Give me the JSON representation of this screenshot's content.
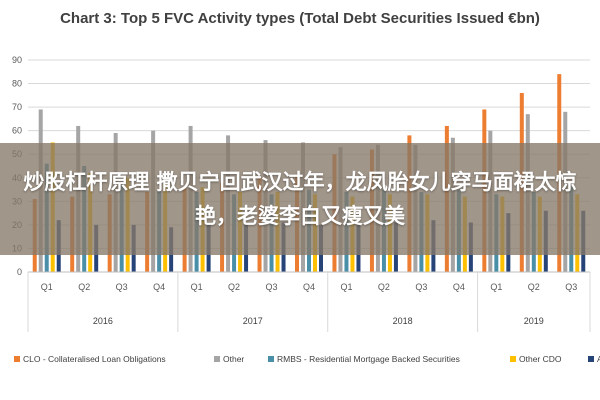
{
  "chart_data": {
    "type": "bar",
    "title": "Chart 3: Top 5 FVC Activity types (Total Debt Securities Issued €bn)",
    "xlabel": "",
    "ylabel": "",
    "ylim": [
      0,
      90
    ],
    "yticks": [
      0,
      10,
      20,
      30,
      40,
      50,
      60,
      70,
      80,
      90
    ],
    "grid": true,
    "legend_position": "bottom",
    "categories": [
      "Q1",
      "Q2",
      "Q3",
      "Q4",
      "Q1",
      "Q2",
      "Q3",
      "Q4",
      "Q1",
      "Q2",
      "Q3",
      "Q4",
      "Q1",
      "Q2",
      "Q3"
    ],
    "year_groups": [
      {
        "label": "2016",
        "count": 4
      },
      {
        "label": "2017",
        "count": 4
      },
      {
        "label": "2018",
        "count": 4
      },
      {
        "label": "2019",
        "count": 3
      }
    ],
    "series": [
      {
        "name": "CLO - Collateralised Loan Obligations",
        "color": "#ED7D31",
        "values": [
          31,
          32,
          33,
          34,
          36,
          38,
          40,
          41,
          50,
          52,
          58,
          62,
          69,
          76,
          84
        ]
      },
      {
        "name": "Other",
        "color": "#A5A5A5",
        "values": [
          69,
          62,
          59,
          60,
          62,
          58,
          56,
          55,
          53,
          54,
          54,
          57,
          60,
          67,
          68
        ]
      },
      {
        "name": "RMBS - Residential Mortgage Backed Securities",
        "color": "#4A8FA8",
        "values": [
          46,
          45,
          38,
          35,
          34,
          33,
          33,
          35,
          34,
          35,
          34,
          35,
          33,
          34,
          36
        ]
      },
      {
        "name": "Other CDO",
        "color": "#FFC000",
        "values": [
          55,
          42,
          40,
          38,
          36,
          34,
          34,
          33,
          32,
          33,
          33,
          32,
          32,
          32,
          33
        ]
      },
      {
        "name": "ABCP",
        "color": "#264478",
        "values": [
          22,
          20,
          20,
          19,
          21,
          20,
          21,
          20,
          20,
          21,
          22,
          21,
          25,
          26,
          26
        ]
      }
    ]
  },
  "overlay": {
    "text": "炒股杠杆原理 撒贝宁回武汉过年，龙凤胎女儿穿马面裙太惊艳，老婆李白又瘦又美"
  }
}
